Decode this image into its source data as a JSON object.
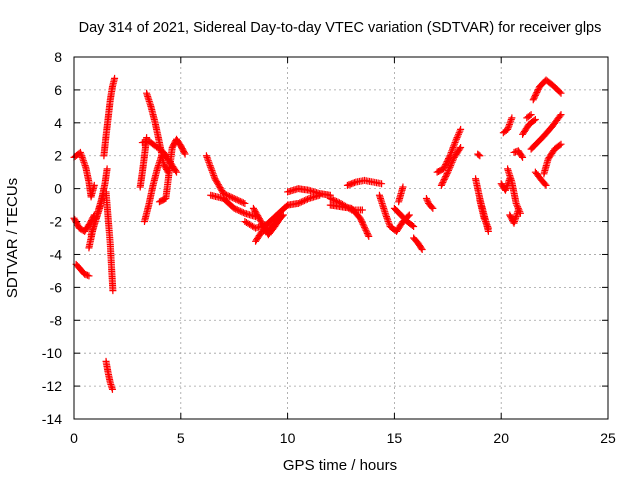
{
  "chart_data": {
    "type": "scatter",
    "title": "Day 314 of 2021, Sidereal Day-to-day VTEC variation (SDTVAR) for receiver glps",
    "xlabel": "GPS time / hours",
    "ylabel": "SDTVAR / TECUs",
    "xlim": [
      0,
      25
    ],
    "ylim": [
      -14,
      8
    ],
    "xticks": [
      0,
      5,
      10,
      15,
      20,
      25
    ],
    "yticks": [
      -14,
      -12,
      -10,
      -8,
      -6,
      -4,
      -2,
      0,
      2,
      4,
      6,
      8
    ],
    "grid": true,
    "marker": "+",
    "color": "#ff0000",
    "series": [
      {
        "name": "SDTVAR",
        "segments": [
          [
            [
              0.0,
              1.9
            ],
            [
              0.3,
              2.2
            ],
            [
              0.55,
              1.3
            ],
            [
              0.7,
              0.4
            ],
            [
              0.8,
              -0.5
            ],
            [
              0.95,
              0.2
            ]
          ],
          [
            [
              0.0,
              -1.8
            ],
            [
              0.25,
              -2.4
            ],
            [
              0.5,
              -2.6
            ],
            [
              0.75,
              -2.1
            ],
            [
              0.95,
              -1.6
            ]
          ],
          [
            [
              0.1,
              -4.6
            ],
            [
              0.3,
              -4.9
            ],
            [
              0.5,
              -5.2
            ],
            [
              0.7,
              -5.3
            ]
          ],
          [
            [
              0.7,
              -3.6
            ],
            [
              0.9,
              -2.4
            ],
            [
              1.1,
              -1.5
            ],
            [
              1.3,
              -0.6
            ],
            [
              1.45,
              0.3
            ],
            [
              1.55,
              1.2
            ]
          ],
          [
            [
              0.8,
              -2.8
            ],
            [
              1.0,
              -2.0
            ],
            [
              1.2,
              -1.2
            ],
            [
              1.4,
              -0.2
            ]
          ],
          [
            [
              1.4,
              2.0
            ],
            [
              1.5,
              3.2
            ],
            [
              1.6,
              4.3
            ],
            [
              1.7,
              5.4
            ],
            [
              1.8,
              6.2
            ],
            [
              1.9,
              6.7
            ]
          ],
          [
            [
              1.5,
              -0.2
            ],
            [
              1.6,
              -1.8
            ],
            [
              1.7,
              -3.4
            ],
            [
              1.75,
              -4.6
            ],
            [
              1.82,
              -6.2
            ]
          ],
          [
            [
              1.5,
              -10.5
            ],
            [
              1.6,
              -11.2
            ],
            [
              1.7,
              -11.8
            ],
            [
              1.8,
              -12.2
            ]
          ],
          [
            [
              3.2,
              2.8
            ],
            [
              3.5,
              2.9
            ],
            [
              3.8,
              2.6
            ],
            [
              4.2,
              2.2
            ],
            [
              4.5,
              1.6
            ],
            [
              4.8,
              1.0
            ]
          ],
          [
            [
              3.4,
              5.8
            ],
            [
              3.6,
              5.0
            ],
            [
              3.8,
              4.0
            ],
            [
              4.0,
              2.8
            ],
            [
              4.2,
              1.5
            ],
            [
              4.4,
              1.0
            ]
          ],
          [
            [
              3.3,
              -2.0
            ],
            [
              3.5,
              -1.0
            ],
            [
              3.7,
              0.2
            ],
            [
              3.9,
              1.2
            ],
            [
              4.1,
              2.0
            ]
          ],
          [
            [
              3.1,
              0.1
            ],
            [
              3.2,
              1.0
            ],
            [
              3.3,
              2.0
            ],
            [
              3.4,
              3.1
            ]
          ],
          [
            [
              4.0,
              -0.8
            ],
            [
              4.3,
              -0.6
            ],
            [
              4.6,
              2.5
            ],
            [
              4.8,
              3.0
            ],
            [
              5.0,
              2.6
            ],
            [
              5.2,
              2.1
            ]
          ],
          [
            [
              6.2,
              2.0
            ],
            [
              6.6,
              0.6
            ],
            [
              7.0,
              -0.3
            ],
            [
              7.5,
              -0.6
            ],
            [
              8.0,
              -0.9
            ]
          ],
          [
            [
              6.4,
              -0.4
            ],
            [
              7.0,
              -0.6
            ],
            [
              7.5,
              -1.2
            ],
            [
              8.0,
              -1.5
            ],
            [
              8.5,
              -1.7
            ]
          ],
          [
            [
              8.0,
              -2.0
            ],
            [
              8.5,
              -2.4
            ],
            [
              9.0,
              -2.2
            ],
            [
              9.5,
              -1.6
            ],
            [
              10.0,
              -1.0
            ]
          ],
          [
            [
              8.4,
              -1.2
            ],
            [
              8.8,
              -2.1
            ],
            [
              9.1,
              -2.8
            ],
            [
              9.4,
              -2.3
            ],
            [
              9.7,
              -1.7
            ]
          ],
          [
            [
              8.5,
              -3.2
            ],
            [
              8.8,
              -2.6
            ],
            [
              9.2,
              -2.4
            ],
            [
              9.8,
              -1.6
            ]
          ],
          [
            [
              10.0,
              -0.2
            ],
            [
              10.5,
              0.0
            ],
            [
              11.0,
              -0.1
            ],
            [
              11.5,
              -0.3
            ],
            [
              12.0,
              -0.4
            ]
          ],
          [
            [
              10.0,
              -1.0
            ],
            [
              10.5,
              -0.9
            ],
            [
              11.0,
              -0.6
            ],
            [
              11.5,
              -0.4
            ]
          ],
          [
            [
              12.0,
              -1.0
            ],
            [
              12.5,
              -1.1
            ],
            [
              13.0,
              -1.2
            ],
            [
              13.4,
              -1.8
            ],
            [
              13.8,
              -2.9
            ]
          ],
          [
            [
              12.0,
              -0.6
            ],
            [
              12.5,
              -0.9
            ],
            [
              13.0,
              -1.3
            ],
            [
              13.5,
              -1.3
            ]
          ],
          [
            [
              12.8,
              0.2
            ],
            [
              13.2,
              0.4
            ],
            [
              13.6,
              0.5
            ],
            [
              14.0,
              0.4
            ],
            [
              14.4,
              0.3
            ]
          ],
          [
            [
              14.3,
              -0.4
            ],
            [
              14.6,
              -1.6
            ],
            [
              14.8,
              -2.3
            ],
            [
              15.1,
              -2.6
            ],
            [
              15.4,
              -2.0
            ],
            [
              15.7,
              -1.6
            ]
          ],
          [
            [
              15.0,
              -1.2
            ],
            [
              15.3,
              -1.6
            ],
            [
              15.6,
              -2.0
            ],
            [
              15.9,
              -2.3
            ]
          ],
          [
            [
              15.2,
              -0.8
            ],
            [
              15.4,
              0.1
            ]
          ],
          [
            [
              15.9,
              -3.0
            ],
            [
              16.1,
              -3.3
            ],
            [
              16.3,
              -3.7
            ]
          ],
          [
            [
              16.5,
              -0.6
            ],
            [
              16.6,
              -0.9
            ],
            [
              16.8,
              -1.2
            ]
          ],
          [
            [
              17.0,
              1.0
            ],
            [
              17.3,
              1.2
            ],
            [
              17.6,
              2.0
            ],
            [
              17.9,
              3.0
            ],
            [
              18.1,
              3.6
            ]
          ],
          [
            [
              17.2,
              0.2
            ],
            [
              17.5,
              1.0
            ],
            [
              17.8,
              1.9
            ],
            [
              18.1,
              2.5
            ]
          ],
          [
            [
              18.8,
              0.6
            ],
            [
              19.0,
              -0.6
            ],
            [
              19.2,
              -1.6
            ],
            [
              19.4,
              -2.6
            ]
          ],
          [
            [
              18.9,
              2.1
            ],
            [
              19.0,
              2.0
            ]
          ],
          [
            [
              19.0,
              -0.7
            ],
            [
              19.2,
              -1.8
            ],
            [
              19.4,
              -2.4
            ]
          ],
          [
            [
              20.0,
              0.3
            ],
            [
              20.2,
              -0.1
            ],
            [
              20.4,
              0.6
            ]
          ],
          [
            [
              20.1,
              3.4
            ],
            [
              20.3,
              3.6
            ],
            [
              20.5,
              4.3
            ]
          ],
          [
            [
              20.3,
              1.2
            ],
            [
              20.5,
              0.4
            ],
            [
              20.7,
              -0.9
            ],
            [
              20.9,
              -1.5
            ]
          ],
          [
            [
              20.4,
              -1.6
            ],
            [
              20.6,
              -2.1
            ],
            [
              20.8,
              -1.3
            ]
          ],
          [
            [
              20.6,
              2.2
            ],
            [
              20.8,
              2.3
            ],
            [
              21.0,
              1.9
            ]
          ],
          [
            [
              21.0,
              3.3
            ],
            [
              21.3,
              3.9
            ],
            [
              21.6,
              4.2
            ]
          ],
          [
            [
              21.4,
              2.4
            ],
            [
              21.7,
              2.8
            ],
            [
              22.0,
              3.2
            ],
            [
              22.4,
              3.8
            ],
            [
              22.8,
              4.5
            ]
          ],
          [
            [
              21.5,
              5.4
            ],
            [
              21.8,
              6.2
            ],
            [
              22.1,
              6.6
            ],
            [
              22.4,
              6.3
            ],
            [
              22.8,
              5.8
            ]
          ],
          [
            [
              21.6,
              1.0
            ],
            [
              21.9,
              0.5
            ],
            [
              22.1,
              0.2
            ]
          ],
          [
            [
              22.0,
              0.9
            ],
            [
              22.2,
              1.8
            ],
            [
              22.5,
              2.4
            ],
            [
              22.8,
              2.7
            ]
          ],
          [
            [
              21.2,
              4.3
            ],
            [
              21.4,
              4.5
            ]
          ]
        ]
      }
    ]
  }
}
